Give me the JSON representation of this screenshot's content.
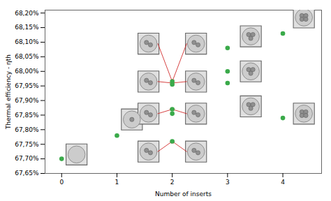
{
  "chart_data": {
    "type": "scatter",
    "xlabel": "Number of inserts",
    "ylabel": "Thermal efficiency - ηth",
    "x": [
      0,
      1,
      2,
      2,
      2,
      2,
      2,
      3,
      3,
      3,
      4,
      4
    ],
    "values": [
      0.677,
      0.6778,
      0.6776,
      0.67855,
      0.6787,
      0.67955,
      0.67965,
      0.6796,
      0.68,
      0.6808,
      0.6784,
      0.6813
    ],
    "color": "#3aaa4a",
    "xlim": [
      -0.3,
      4.7
    ],
    "ylim": [
      0.6765,
      0.6821
    ],
    "xticks": [
      0,
      1,
      2,
      3,
      4
    ],
    "yticks": [
      {
        "value": 0.6765,
        "label": "67,65%"
      },
      {
        "value": 0.677,
        "label": "67,70%"
      },
      {
        "value": 0.6775,
        "label": "67,75%"
      },
      {
        "value": 0.678,
        "label": "67,80%"
      },
      {
        "value": 0.6785,
        "label": "67,85%"
      },
      {
        "value": 0.679,
        "label": "67,90%"
      },
      {
        "value": 0.6795,
        "label": "67,95%"
      },
      {
        "value": 0.68,
        "label": "68,00%"
      },
      {
        "value": 0.6805,
        "label": "68,05%"
      },
      {
        "value": 0.681,
        "label": "68,10%"
      },
      {
        "value": 0.6815,
        "label": "68,15%"
      },
      {
        "value": 0.682,
        "label": "68,20%"
      }
    ],
    "icons": [
      {
        "x": 0.27,
        "y": 0.67715,
        "n": 0
      },
      {
        "x": 1.27,
        "y": 0.67835,
        "n": 1
      },
      {
        "x": 1.57,
        "y": 0.68095,
        "n": 2
      },
      {
        "x": 1.57,
        "y": 0.67965,
        "n": 2
      },
      {
        "x": 1.57,
        "y": 0.67855,
        "n": 2
      },
      {
        "x": 1.57,
        "y": 0.67725,
        "n": 2
      },
      {
        "x": 2.43,
        "y": 0.68095,
        "n": 2
      },
      {
        "x": 2.43,
        "y": 0.67965,
        "n": 2
      },
      {
        "x": 2.43,
        "y": 0.67855,
        "n": 2
      },
      {
        "x": 2.43,
        "y": 0.67725,
        "n": 2
      },
      {
        "x": 3.42,
        "y": 0.6812,
        "n": 3
      },
      {
        "x": 3.42,
        "y": 0.68,
        "n": 3
      },
      {
        "x": 3.42,
        "y": 0.6788,
        "n": 3
      },
      {
        "x": 4.38,
        "y": 0.68185,
        "n": 4
      },
      {
        "x": 4.38,
        "y": 0.67855,
        "n": 4
      }
    ],
    "arrows": [
      {
        "x1": 1.74,
        "y1": 0.68095,
        "x2": 2.0,
        "y2": 0.67965,
        "color": "#cc1111"
      },
      {
        "x1": 1.74,
        "y1": 0.67965,
        "x2": 2.0,
        "y2": 0.6796,
        "color": "#cc1111"
      },
      {
        "x1": 1.74,
        "y1": 0.67855,
        "x2": 2.0,
        "y2": 0.6787,
        "color": "#cc1111"
      },
      {
        "x1": 1.74,
        "y1": 0.67725,
        "x2": 2.0,
        "y2": 0.6776,
        "color": "#cc1111"
      },
      {
        "x1": 2.26,
        "y1": 0.68095,
        "x2": 2.0,
        "y2": 0.67965,
        "color": "#cc1111"
      },
      {
        "x1": 2.26,
        "y1": 0.67965,
        "x2": 2.0,
        "y2": 0.6796,
        "color": "#cc1111"
      },
      {
        "x1": 2.26,
        "y1": 0.67855,
        "x2": 2.0,
        "y2": 0.6787,
        "color": "#cc1111"
      },
      {
        "x1": 2.26,
        "y1": 0.67725,
        "x2": 2.0,
        "y2": 0.6776,
        "color": "#cc1111"
      }
    ]
  }
}
